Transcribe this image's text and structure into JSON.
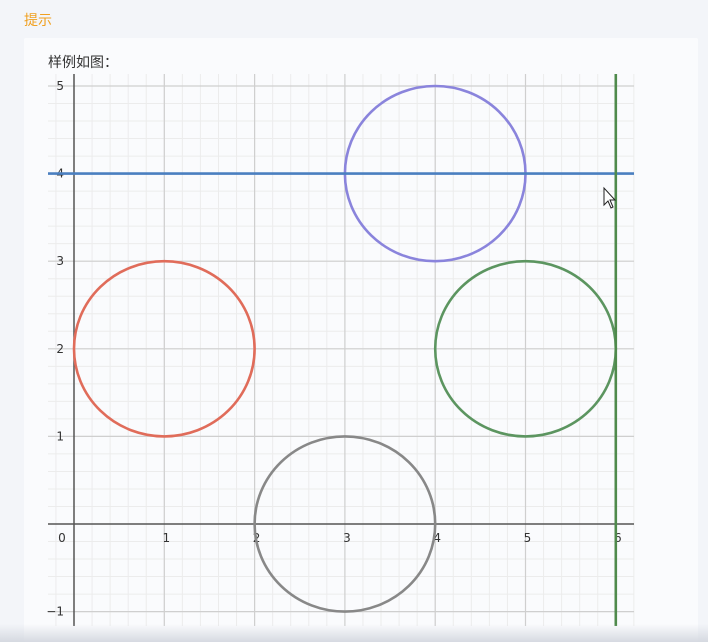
{
  "hint": {
    "title": "提示"
  },
  "example": {
    "caption": "样例如图："
  },
  "chart_data": {
    "type": "scatter",
    "title": "",
    "xlabel": "",
    "ylabel": "",
    "xlim": [
      -0.3,
      6.2
    ],
    "ylim": [
      -1.2,
      5.1
    ],
    "grid": true,
    "minor_grid_step": 0.2,
    "x_ticks": [
      0,
      1,
      2,
      3,
      4,
      5,
      6
    ],
    "y_ticks": [
      -1,
      1,
      2,
      3,
      4,
      5
    ],
    "circles": [
      {
        "cx": 1,
        "cy": 2,
        "r": 1,
        "color": "#e06c5a"
      },
      {
        "cx": 3,
        "cy": 0,
        "r": 1,
        "color": "#888888"
      },
      {
        "cx": 4,
        "cy": 4,
        "r": 1,
        "color": "#8a84dc"
      },
      {
        "cx": 5,
        "cy": 2,
        "r": 1,
        "color": "#5c9560"
      }
    ],
    "lines": [
      {
        "orientation": "horizontal",
        "value": 4,
        "color": "#4a7fc0"
      },
      {
        "orientation": "vertical",
        "value": 6,
        "color": "#4f8a4c"
      }
    ]
  }
}
